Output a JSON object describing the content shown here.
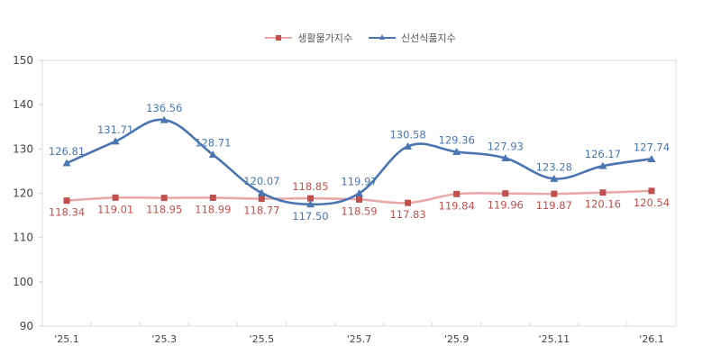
{
  "chart_data": {
    "type": "line",
    "title": "",
    "xlabel": "",
    "ylabel": "",
    "ylim": [
      90,
      150
    ],
    "yticks": [
      90,
      100,
      110,
      120,
      130,
      140,
      150
    ],
    "x": [
      "'25.1",
      "'25.2",
      "'25.3",
      "'25.4",
      "'25.5",
      "'25.6",
      "'25.7",
      "'25.8",
      "'25.9",
      "'25.10",
      "'25.11",
      "'25.12",
      "'26.1"
    ],
    "xtick_labels": [
      "'25.1",
      "",
      "'25.3",
      "",
      "'25.5",
      "",
      "'25.7",
      "",
      "'25.9",
      "",
      "'25.11",
      "",
      "'26.1"
    ],
    "grid": false,
    "legend_position": "top-center",
    "series": [
      {
        "name": "생활물가지수",
        "color": "#c0504d",
        "line_color": "#e8a8a8",
        "marker": "square",
        "values": [
          118.34,
          119.01,
          118.95,
          118.99,
          118.77,
          118.85,
          118.59,
          117.83,
          119.84,
          119.96,
          119.87,
          120.16,
          120.54
        ],
        "label_pos": [
          "below",
          "below",
          "below",
          "below",
          "below",
          "above",
          "below",
          "below",
          "below",
          "below",
          "below",
          "below",
          "below"
        ]
      },
      {
        "name": "신선식품지수",
        "color": "#4a75b0",
        "line_color": "#4a75b0",
        "marker": "triangle",
        "values": [
          126.81,
          131.71,
          136.56,
          128.71,
          120.07,
          117.5,
          119.97,
          130.58,
          129.36,
          127.93,
          123.28,
          126.17,
          127.74
        ],
        "label_pos": [
          "above",
          "above",
          "above",
          "above",
          "above",
          "below",
          "above",
          "above",
          "above",
          "above",
          "above",
          "above",
          "above"
        ]
      }
    ]
  },
  "legend": {
    "items": [
      {
        "label": "생활물가지수"
      },
      {
        "label": "신선식품지수"
      }
    ]
  }
}
